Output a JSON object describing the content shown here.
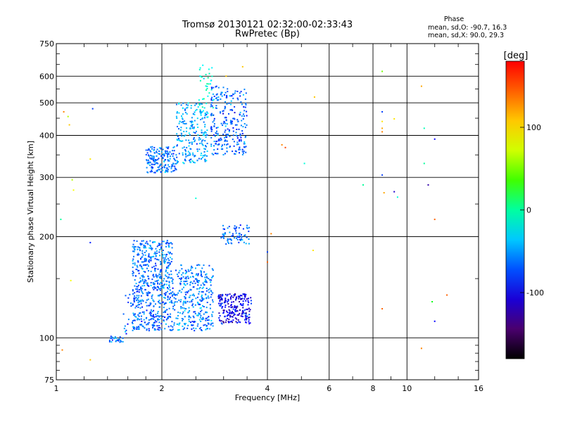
{
  "chart_data": {
    "type": "scatter",
    "title": "Tromsø 20130121 02:32:00-02:33:43",
    "subtitle": "RwPretec (Bp)",
    "xlabel": "Frequency [MHz]",
    "ylabel": "Stationary phase Virtual Height [km]",
    "x_scale": "log",
    "y_scale": "log",
    "xlim": [
      1,
      16
    ],
    "ylim": [
      75,
      750
    ],
    "x_ticks": [
      {
        "value": 1,
        "label": "1"
      },
      {
        "value": 2,
        "label": "2"
      },
      {
        "value": 4,
        "label": "4"
      },
      {
        "value": 6,
        "label": "6"
      },
      {
        "value": 8,
        "label": "8"
      },
      {
        "value": 10,
        "label": "10"
      },
      {
        "value": 16,
        "label": "16"
      }
    ],
    "y_ticks": [
      {
        "value": 75,
        "label": "75"
      },
      {
        "value": 100,
        "label": "100"
      },
      {
        "value": 200,
        "label": "200"
      },
      {
        "value": 300,
        "label": "300"
      },
      {
        "value": 400,
        "label": "400"
      },
      {
        "value": 500,
        "label": "500"
      },
      {
        "value": 600,
        "label": "600"
      },
      {
        "value": 750,
        "label": "750"
      }
    ],
    "grid": true,
    "legend_title": "Phase",
    "legend_lines": [
      "mean, sd,O: -90.7, 16.3",
      "mean, sd,X:  90.0, 29.3"
    ],
    "colorbar": {
      "label": "[deg]",
      "range": [
        -180,
        180
      ],
      "ticks": [
        {
          "value": 100,
          "label": "100"
        },
        {
          "value": 0,
          "label": "0"
        },
        {
          "value": -100,
          "label": "-100"
        }
      ]
    },
    "clusters": [
      {
        "fmin": 1.42,
        "fmax": 1.55,
        "hmin": 97,
        "hmax": 101,
        "phase": -95,
        "n": 25
      },
      {
        "fmin": 1.55,
        "fmax": 1.65,
        "hmin": 100,
        "hmax": 135,
        "phase": -95,
        "n": 15
      },
      {
        "fmin": 1.65,
        "fmax": 2.15,
        "hmin": 105,
        "hmax": 195,
        "phase": -95,
        "n": 600
      },
      {
        "fmin": 2.15,
        "fmax": 2.8,
        "hmin": 105,
        "hmax": 165,
        "phase": -90,
        "n": 330
      },
      {
        "fmin": 2.9,
        "fmax": 3.6,
        "hmin": 110,
        "hmax": 135,
        "phase": -130,
        "n": 220
      },
      {
        "fmin": 2.95,
        "fmax": 3.55,
        "hmin": 190,
        "hmax": 218,
        "phase": -95,
        "n": 70
      },
      {
        "fmin": 1.8,
        "fmax": 2.2,
        "hmin": 310,
        "hmax": 370,
        "phase": -95,
        "n": 170
      },
      {
        "fmin": 2.2,
        "fmax": 2.7,
        "hmin": 330,
        "hmax": 500,
        "phase": -80,
        "n": 230
      },
      {
        "fmin": 2.55,
        "fmax": 2.8,
        "hmin": 450,
        "hmax": 650,
        "phase": -40,
        "n": 40
      },
      {
        "fmin": 2.75,
        "fmax": 3.5,
        "hmin": 350,
        "hmax": 560,
        "phase": -100,
        "n": 260
      }
    ],
    "points": [
      {
        "f": 1.05,
        "h": 470,
        "phase": 140
      },
      {
        "f": 1.08,
        "h": 455,
        "phase": 80
      },
      {
        "f": 1.09,
        "h": 430,
        "phase": 120
      },
      {
        "f": 1.12,
        "h": 275,
        "phase": 100
      },
      {
        "f": 1.11,
        "h": 295,
        "phase": 80
      },
      {
        "f": 1.25,
        "h": 340,
        "phase": 110
      },
      {
        "f": 1.27,
        "h": 480,
        "phase": -110
      },
      {
        "f": 1.03,
        "h": 225,
        "phase": -20
      },
      {
        "f": 1.25,
        "h": 192,
        "phase": -120
      },
      {
        "f": 1.1,
        "h": 148,
        "phase": 100
      },
      {
        "f": 1.04,
        "h": 92,
        "phase": 140
      },
      {
        "f": 1.25,
        "h": 86,
        "phase": 120
      },
      {
        "f": 2.5,
        "h": 260,
        "phase": -40
      },
      {
        "f": 3.05,
        "h": 600,
        "phase": 120
      },
      {
        "f": 3.4,
        "h": 640,
        "phase": 120
      },
      {
        "f": 4.0,
        "h": 180,
        "phase": -110
      },
      {
        "f": 4.0,
        "h": 168,
        "phase": 150
      },
      {
        "f": 4.1,
        "h": 204,
        "phase": 140
      },
      {
        "f": 4.4,
        "h": 375,
        "phase": 140
      },
      {
        "f": 4.5,
        "h": 368,
        "phase": 160
      },
      {
        "f": 5.1,
        "h": 330,
        "phase": -40
      },
      {
        "f": 5.45,
        "h": 520,
        "phase": 120
      },
      {
        "f": 5.4,
        "h": 182,
        "phase": 110
      },
      {
        "f": 7.5,
        "h": 285,
        "phase": -20
      },
      {
        "f": 8.5,
        "h": 620,
        "phase": 60
      },
      {
        "f": 8.5,
        "h": 470,
        "phase": -110
      },
      {
        "f": 8.5,
        "h": 440,
        "phase": 110
      },
      {
        "f": 8.5,
        "h": 420,
        "phase": 130
      },
      {
        "f": 8.5,
        "h": 410,
        "phase": 140
      },
      {
        "f": 8.5,
        "h": 305,
        "phase": -110
      },
      {
        "f": 8.6,
        "h": 270,
        "phase": 130
      },
      {
        "f": 8.5,
        "h": 122,
        "phase": 150
      },
      {
        "f": 9.2,
        "h": 448,
        "phase": 110
      },
      {
        "f": 9.2,
        "h": 272,
        "phase": -140
      },
      {
        "f": 9.4,
        "h": 262,
        "phase": -40
      },
      {
        "f": 11.0,
        "h": 560,
        "phase": 130
      },
      {
        "f": 11.2,
        "h": 420,
        "phase": -30
      },
      {
        "f": 11.2,
        "h": 330,
        "phase": -20
      },
      {
        "f": 11.5,
        "h": 285,
        "phase": -150
      },
      {
        "f": 12.0,
        "h": 390,
        "phase": -130
      },
      {
        "f": 12.0,
        "h": 225,
        "phase": 150
      },
      {
        "f": 11.8,
        "h": 128,
        "phase": 20
      },
      {
        "f": 12.0,
        "h": 112,
        "phase": -130
      },
      {
        "f": 11.0,
        "h": 93,
        "phase": 140
      },
      {
        "f": 13.0,
        "h": 134,
        "phase": 150
      }
    ]
  }
}
